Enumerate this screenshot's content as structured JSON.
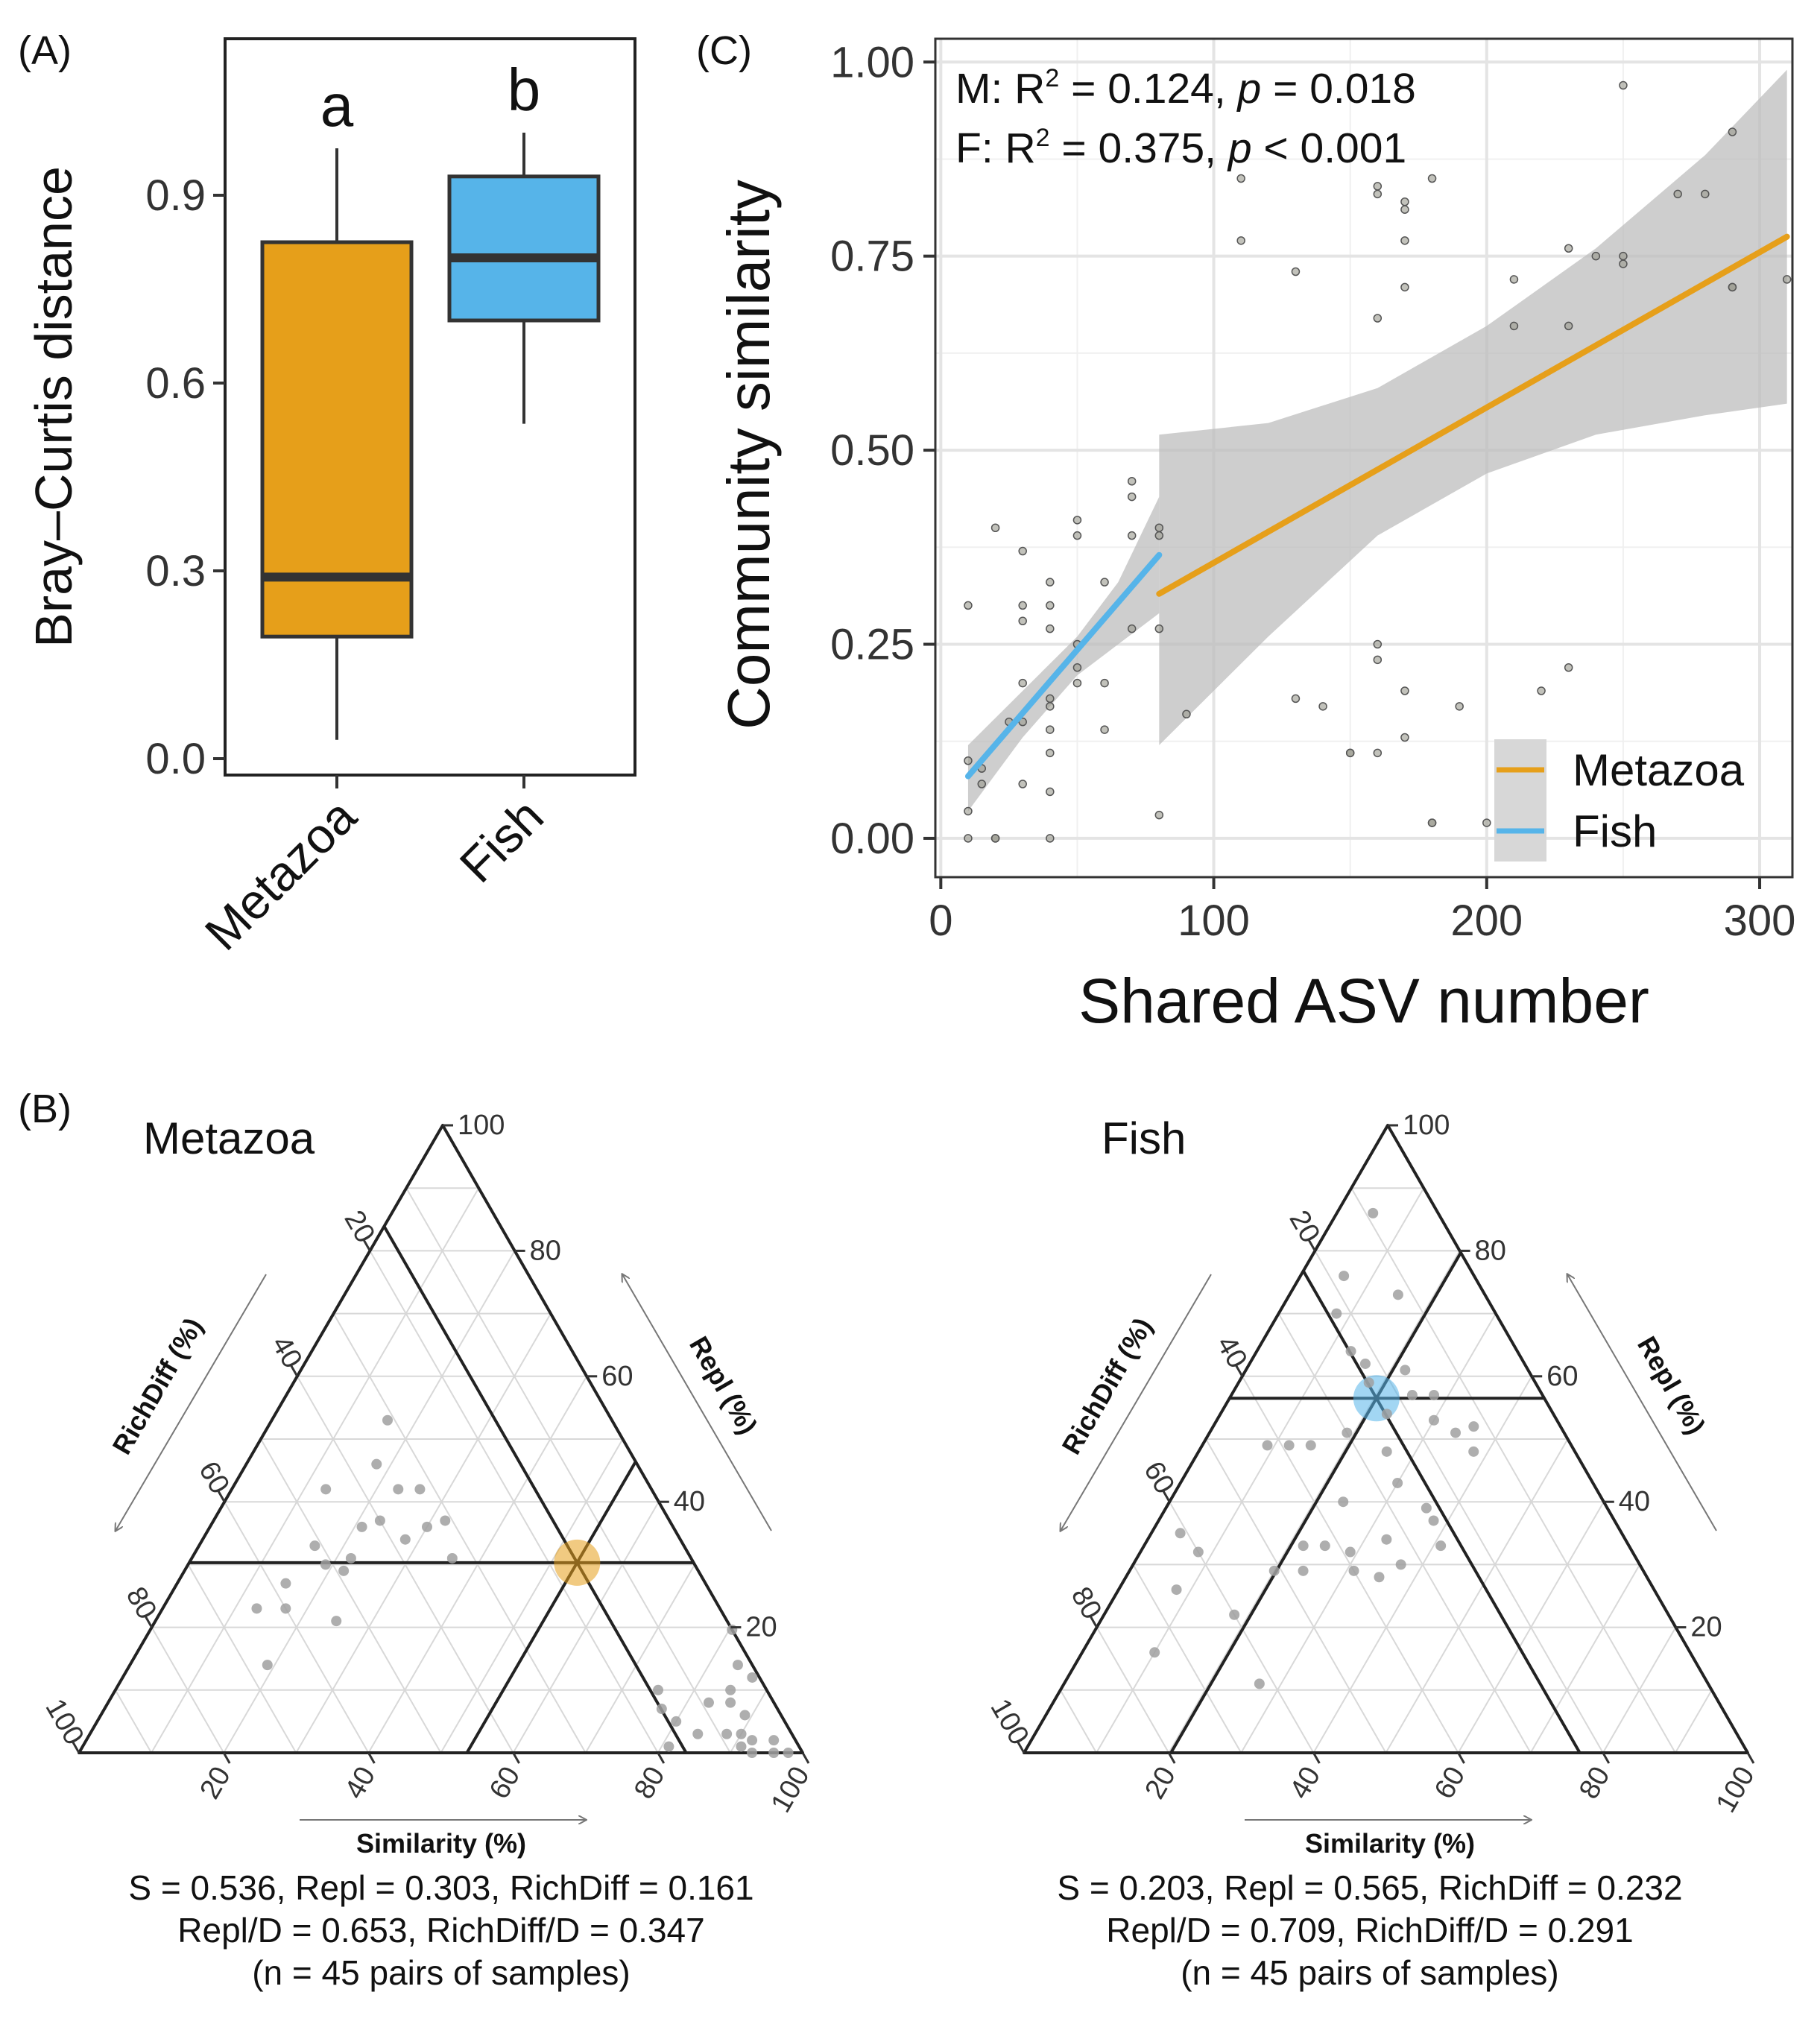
{
  "panel_labels": {
    "A": "(A)",
    "B": "(B)",
    "C": "(C)"
  },
  "colors": {
    "metazoa": "#E69F1A",
    "fish": "#56B4E9",
    "ribbon": "#BEBEBE",
    "points": "#9A9A8E",
    "grid": "#E4E4E4"
  },
  "chart_data": [
    {
      "id": "A",
      "type": "boxplot",
      "ylabel": "Bray–Curtis distance",
      "ylim": [
        0,
        1.15
      ],
      "yticks": [
        0.0,
        0.3,
        0.6,
        0.9
      ],
      "ytick_labels": [
        "0.0",
        "0.3",
        "0.6",
        "0.9"
      ],
      "categories": [
        "Metazoa",
        "Fish"
      ],
      "boxes": [
        {
          "name": "Metazoa",
          "min": 0.03,
          "q1": 0.195,
          "median": 0.29,
          "q3": 0.825,
          "max": 0.975,
          "letter": "a"
        },
        {
          "name": "Fish",
          "min": 0.535,
          "q1": 0.7,
          "median": 0.8,
          "q3": 0.93,
          "max": 1.0,
          "letter": "b"
        }
      ]
    },
    {
      "id": "C",
      "type": "scatter",
      "xlabel": "Shared ASV number",
      "ylabel": "Community similarity",
      "xlim": [
        -2,
        312
      ],
      "ylim": [
        -0.05,
        1.03
      ],
      "xticks": [
        0,
        100,
        200,
        300
      ],
      "xtick_labels": [
        "0",
        "100",
        "200",
        "300"
      ],
      "yticks": [
        0.0,
        0.25,
        0.5,
        0.75,
        1.0
      ],
      "ytick_labels": [
        "0.00",
        "0.25",
        "0.50",
        "0.75",
        "1.00"
      ],
      "stats": [
        {
          "prefix": "M: R",
          "sup": "2",
          "mid": " = 0.124, ",
          "p": "p",
          "suffix": " = 0.018"
        },
        {
          "prefix": "F: R",
          "sup": "2",
          "mid": " = 0.375, ",
          "p": "p",
          "suffix": " < 0.001"
        }
      ],
      "legend": [
        "Metazoa",
        "Fish"
      ],
      "fits": [
        {
          "name": "Metazoa",
          "x": [
            80,
            310
          ],
          "y": [
            0.315,
            0.775
          ],
          "ribbon_upper": [
            [
              80,
              0.52
            ],
            [
              120,
              0.535
            ],
            [
              160,
              0.58
            ],
            [
              200,
              0.66
            ],
            [
              240,
              0.76
            ],
            [
              280,
              0.88
            ],
            [
              310,
              0.99
            ]
          ],
          "ribbon_lower": [
            [
              80,
              0.12
            ],
            [
              120,
              0.26
            ],
            [
              160,
              0.39
            ],
            [
              200,
              0.47
            ],
            [
              240,
              0.52
            ],
            [
              280,
              0.545
            ],
            [
              310,
              0.56
            ]
          ]
        },
        {
          "name": "Fish",
          "x": [
            10,
            80
          ],
          "y": [
            0.08,
            0.365
          ],
          "ribbon_upper": [
            [
              10,
              0.12
            ],
            [
              30,
              0.19
            ],
            [
              50,
              0.26
            ],
            [
              65,
              0.33
            ],
            [
              80,
              0.44
            ]
          ],
          "ribbon_lower": [
            [
              10,
              0.035
            ],
            [
              30,
              0.13
            ],
            [
              50,
              0.21
            ],
            [
              65,
              0.25
            ],
            [
              80,
              0.29
            ]
          ]
        }
      ],
      "points": [
        [
          10,
          0.0
        ],
        [
          10,
          0.035
        ],
        [
          10,
          0.1
        ],
        [
          10,
          0.3
        ],
        [
          15,
          0.07
        ],
        [
          15,
          0.09
        ],
        [
          20,
          0.0
        ],
        [
          20,
          0.0
        ],
        [
          20,
          0.4
        ],
        [
          25,
          0.15
        ],
        [
          30,
          0.07
        ],
        [
          30,
          0.15
        ],
        [
          30,
          0.2
        ],
        [
          30,
          0.28
        ],
        [
          30,
          0.3
        ],
        [
          30,
          0.37
        ],
        [
          40,
          0.0
        ],
        [
          40,
          0.06
        ],
        [
          40,
          0.11
        ],
        [
          40,
          0.14
        ],
        [
          40,
          0.17
        ],
        [
          40,
          0.18
        ],
        [
          40,
          0.27
        ],
        [
          40,
          0.3
        ],
        [
          40,
          0.33
        ],
        [
          50,
          0.2
        ],
        [
          50,
          0.22
        ],
        [
          50,
          0.25
        ],
        [
          50,
          0.39
        ],
        [
          50,
          0.41
        ],
        [
          60,
          0.14
        ],
        [
          60,
          0.2
        ],
        [
          60,
          0.33
        ],
        [
          70,
          0.27
        ],
        [
          70,
          0.39
        ],
        [
          70,
          0.44
        ],
        [
          70,
          0.46
        ],
        [
          80,
          0.27
        ],
        [
          80,
          0.39
        ],
        [
          80,
          0.4
        ],
        [
          80,
          0.03
        ],
        [
          90,
          0.16
        ],
        [
          110,
          0.85
        ],
        [
          110,
          0.77
        ],
        [
          130,
          0.18
        ],
        [
          130,
          0.73
        ],
        [
          140,
          0.17
        ],
        [
          150,
          0.11
        ],
        [
          150,
          0.11
        ],
        [
          160,
          0.11
        ],
        [
          160,
          0.23
        ],
        [
          160,
          0.25
        ],
        [
          160,
          0.67
        ],
        [
          160,
          0.83
        ],
        [
          160,
          0.84
        ],
        [
          170,
          0.13
        ],
        [
          170,
          0.19
        ],
        [
          170,
          0.71
        ],
        [
          170,
          0.77
        ],
        [
          170,
          0.81
        ],
        [
          170,
          0.82
        ],
        [
          180,
          0.02
        ],
        [
          180,
          0.02
        ],
        [
          180,
          0.85
        ],
        [
          190,
          0.17
        ],
        [
          200,
          0.02
        ],
        [
          210,
          0.66
        ],
        [
          210,
          0.72
        ],
        [
          220,
          0.19
        ],
        [
          230,
          0.22
        ],
        [
          230,
          0.66
        ],
        [
          230,
          0.76
        ],
        [
          240,
          0.75
        ],
        [
          250,
          0.74
        ],
        [
          250,
          0.75
        ],
        [
          250,
          0.97
        ],
        [
          270,
          0.83
        ],
        [
          280,
          0.83
        ],
        [
          290,
          0.71
        ],
        [
          290,
          0.71
        ],
        [
          290,
          0.91
        ],
        [
          310,
          0.72
        ]
      ]
    },
    {
      "id": "B-metazoa",
      "type": "ternary",
      "title": "Metazoa",
      "axis_names": {
        "similarity": "Similarity (%)",
        "repl": "Repl (%)",
        "richdiff": "RichDiff (%)"
      },
      "tick_labels": [
        "20",
        "40",
        "60",
        "80",
        "100"
      ],
      "mean_point": {
        "S": 53.6,
        "Repl": 30.3,
        "RichDiff": 16.1
      },
      "points_srr": [
        [
          16,
          53,
          31
        ],
        [
          18,
          46,
          36
        ],
        [
          23,
          42,
          35
        ],
        [
          21,
          36,
          43
        ],
        [
          23,
          37,
          40
        ],
        [
          26,
          42,
          32
        ],
        [
          28,
          34,
          38
        ],
        [
          22,
          31,
          47
        ],
        [
          30,
          36,
          34
        ],
        [
          13,
          42,
          45
        ],
        [
          16,
          33,
          51
        ],
        [
          19,
          30,
          51
        ],
        [
          22,
          29,
          49
        ],
        [
          15,
          27,
          58
        ],
        [
          17,
          23,
          60
        ],
        [
          13,
          23,
          64
        ],
        [
          25,
          21,
          54
        ],
        [
          19,
          14,
          67
        ],
        [
          32,
          37,
          31
        ],
        [
          36,
          31,
          33
        ],
        [
          82,
          20,
          0
        ],
        [
          84,
          14,
          2
        ],
        [
          87,
          12,
          1
        ],
        [
          85,
          10,
          5
        ],
        [
          83,
          8,
          9
        ],
        [
          86,
          8,
          6
        ],
        [
          89,
          6,
          5
        ],
        [
          90,
          3,
          7
        ],
        [
          88,
          3,
          9
        ],
        [
          92,
          2,
          6
        ],
        [
          80,
          5,
          15
        ],
        [
          84,
          3,
          13
        ],
        [
          91,
          1,
          8
        ],
        [
          93,
          0,
          7
        ],
        [
          95,
          2,
          3
        ],
        [
          96,
          0,
          4
        ],
        [
          98,
          0,
          2
        ],
        [
          77,
          7,
          16
        ],
        [
          81,
          1,
          18
        ],
        [
          75,
          10,
          15
        ]
      ],
      "summary": [
        "S = 0.536, Repl = 0.303, RichDiff = 0.161",
        "Repl/D = 0.653, RichDiff/D = 0.347",
        "(n = 45 pairs of samples)"
      ]
    },
    {
      "id": "B-fish",
      "type": "ternary",
      "title": "Fish",
      "axis_names": {
        "similarity": "Similarity (%)",
        "repl": "Repl (%)",
        "richdiff": "RichDiff (%)"
      },
      "tick_labels": [
        "20",
        "40",
        "60",
        "80",
        "100"
      ],
      "mean_point": {
        "S": 20.3,
        "Repl": 56.5,
        "RichDiff": 23.2
      },
      "points_srr": [
        [
          8,
          70,
          22
        ],
        [
          5,
          86,
          9
        ],
        [
          6,
          76,
          18
        ],
        [
          15,
          73,
          12
        ],
        [
          13,
          64,
          23
        ],
        [
          16,
          62,
          22
        ],
        [
          18,
          59,
          23
        ],
        [
          23,
          54,
          23
        ],
        [
          25,
          57,
          18
        ],
        [
          28,
          57,
          15
        ],
        [
          30,
          53,
          17
        ],
        [
          34,
          51,
          15
        ],
        [
          36,
          52,
          12
        ],
        [
          38,
          48,
          14
        ],
        [
          9,
          49,
          42
        ],
        [
          12,
          49,
          39
        ],
        [
          15,
          49,
          36
        ],
        [
          25,
          33,
          42
        ],
        [
          29,
          32,
          39
        ],
        [
          33,
          34,
          33
        ],
        [
          22,
          33,
          45
        ],
        [
          35,
          28,
          37
        ],
        [
          37,
          30,
          33
        ],
        [
          41,
          33,
          26
        ],
        [
          36,
          39,
          25
        ],
        [
          4,
          35,
          61
        ],
        [
          8,
          32,
          60
        ],
        [
          8,
          26,
          66
        ],
        [
          10,
          16,
          74
        ],
        [
          18,
          22,
          60
        ],
        [
          20,
          29,
          51
        ],
        [
          24,
          29,
          47
        ],
        [
          31,
          29,
          40
        ],
        [
          26,
          48,
          26
        ],
        [
          19,
          51,
          30
        ],
        [
          22,
          61,
          17
        ],
        [
          27,
          11,
          62
        ],
        [
          24,
          40,
          36
        ],
        [
          30,
          43,
          27
        ],
        [
          38,
          37,
          25
        ]
      ],
      "summary": [
        "S = 0.203, Repl = 0.565, RichDiff = 0.232",
        "Repl/D = 0.709, RichDiff/D = 0.291",
        "(n = 45 pairs of samples)"
      ]
    }
  ]
}
